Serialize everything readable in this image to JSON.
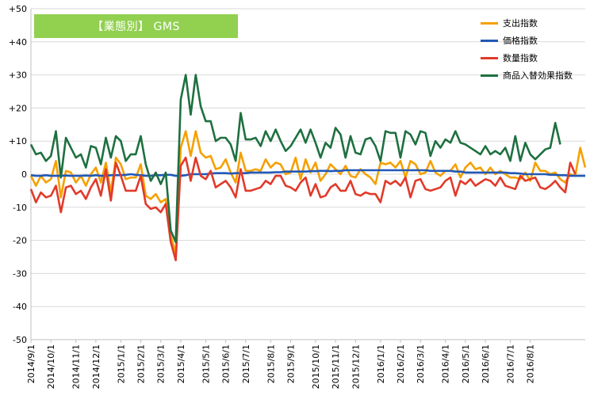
{
  "chart_data": {
    "type": "line",
    "title": "【業態別】 GMS",
    "ylim": [
      -50,
      50
    ],
    "y_ticks": [
      "+50",
      "+40",
      "+30",
      "+20",
      "+10",
      "0",
      "-10",
      "-20",
      "-30",
      "-40",
      "-50"
    ],
    "x_tick_labels": [
      "2014/9/1",
      "2014/10/1",
      "2014/11/1",
      "2014/12/1",
      "2015/1/1",
      "2015/2/1",
      "2015/3/1",
      "2015/4/1",
      "2015/5/1",
      "2015/6/1",
      "2015/7/1",
      "2015/8/1",
      "2015/9/1",
      "2015/10/1",
      "2015/11/1",
      "2015/12/1",
      "2016/1/1",
      "2016/2/1",
      "2016/3/1",
      "2016/4/1",
      "2016/5/1",
      "2016/6/1",
      "2016/7/1",
      "2016/8/1"
    ],
    "x_tick_week_index": [
      0,
      4,
      9,
      13,
      18,
      22,
      26,
      30,
      35,
      39,
      43,
      48,
      52,
      57,
      61,
      65,
      70,
      74,
      78,
      83,
      87,
      91,
      96,
      100
    ],
    "grid": true,
    "legend_position": "top-right",
    "series": [
      {
        "name": "支出指数",
        "color": "#f5a000",
        "values": [
          -0.5,
          -3.5,
          -0.5,
          -2.5,
          -1.5,
          4,
          -7,
          1,
          0.5,
          -2.5,
          -0.5,
          -3.5,
          0,
          2,
          -2.5,
          3.5,
          -5.5,
          5,
          3,
          -1.5,
          -1,
          -1,
          3,
          -6.5,
          -7.5,
          -6,
          -8.5,
          -7.5,
          -18.5,
          -24,
          8,
          13,
          5.5,
          13,
          6.5,
          5,
          5.5,
          1.5,
          2,
          4.5,
          0.5,
          -2.5,
          6.5,
          1,
          1,
          1.5,
          1,
          4.5,
          2,
          3.5,
          3,
          0,
          0.5,
          5,
          -1.5,
          4.5,
          0.5,
          3.5,
          -2,
          0,
          3,
          1.5,
          0,
          2.5,
          -0.5,
          -1,
          1.5,
          0,
          -1,
          -3,
          3.5,
          3,
          3.5,
          2,
          4,
          -1,
          4,
          3,
          0,
          0.5,
          4,
          0.5,
          -0.5,
          1,
          1,
          3,
          -1,
          2,
          3.5,
          1.5,
          2,
          0,
          2,
          0,
          1,
          0,
          -1,
          -1,
          -1.5,
          0.5,
          -2,
          3.5,
          1,
          1,
          0,
          0.5,
          -1.5,
          -2.5,
          0,
          -0.5,
          8,
          2
        ]
      },
      {
        "name": "価格指数",
        "color": "#2158b7",
        "values": [
          -0.3,
          -0.5,
          -0.5,
          -0.3,
          -0.5,
          -0.5,
          -0.5,
          -0.4,
          -0.5,
          -0.5,
          -0.5,
          -0.4,
          -0.5,
          -0.3,
          -0.5,
          -0.5,
          -0.3,
          -0.3,
          -0.3,
          -0.2,
          0,
          -0.2,
          -0.3,
          -0.5,
          -0.5,
          -0.3,
          -0.3,
          -0.2,
          -0.2,
          -0.5,
          -0.5,
          -0.3,
          0,
          0,
          0,
          0,
          0.2,
          0.3,
          0.3,
          0.3,
          0.2,
          0.3,
          0.3,
          0.3,
          0.5,
          0.5,
          0.5,
          0.5,
          0.5,
          0.6,
          0.6,
          0.8,
          0.8,
          0.8,
          0.8,
          0.8,
          0.9,
          0.9,
          1,
          1,
          0.9,
          1,
          1,
          1.2,
          1.2,
          1.2,
          1.2,
          1.2,
          1.2,
          1.2,
          1.2,
          1.2,
          1.2,
          1.2,
          1.2,
          1.2,
          1.2,
          1.2,
          1.2,
          1.2,
          1,
          1,
          1,
          1,
          1,
          0.8,
          0.8,
          0.5,
          0.5,
          0.5,
          0.5,
          0.5,
          0.5,
          0.5,
          0.5,
          0.5,
          0.3,
          0.3,
          0.2,
          0,
          0,
          0,
          0,
          0,
          -0.2,
          -0.2,
          -0.3,
          -0.3,
          -0.5,
          -0.5,
          -0.5,
          -0.5
        ]
      },
      {
        "name": "数量指数",
        "color": "#e13a2a",
        "values": [
          -4.5,
          -8.5,
          -5.5,
          -7,
          -6.5,
          -3.5,
          -11.5,
          -4,
          -3.5,
          -6,
          -5,
          -7.5,
          -4,
          -1.5,
          -6.5,
          1.5,
          -8,
          3.5,
          -0.5,
          -5,
          -5,
          -5,
          -0.5,
          -9,
          -10.5,
          -10,
          -11.5,
          -9,
          -20.5,
          -26,
          2.5,
          5,
          -2,
          5,
          -0.5,
          -1.5,
          1,
          -4,
          -3,
          -2,
          -4,
          -7,
          1.5,
          -5,
          -5,
          -4.5,
          -4,
          -2,
          -3,
          -0.5,
          -0.5,
          -3.5,
          -4,
          -5,
          -2.5,
          -1,
          -6.5,
          -3,
          -7,
          -6.5,
          -4,
          -3,
          -5,
          -5,
          -2,
          -6,
          -6.5,
          -5.5,
          -6,
          -6,
          -8.5,
          -2,
          -3,
          -2,
          -3.5,
          -1,
          -7,
          -2,
          -1.5,
          -4.5,
          -5,
          -4.5,
          -4,
          -2,
          -1,
          -6.5,
          -2,
          -3,
          -1.5,
          -3.5,
          -2.5,
          -1.5,
          -2,
          -3.5,
          -1,
          -3.5,
          -4,
          -4.5,
          -0.5,
          -2,
          -1.5,
          -1,
          -4,
          -4.5,
          -3.5,
          -2,
          -4,
          -5.5,
          3.5,
          0
        ]
      },
      {
        "name": "商品入替効果指数",
        "color": "#1e7040",
        "values": [
          9,
          6,
          6.5,
          4,
          5.5,
          13,
          -1,
          11,
          8,
          5,
          6,
          2,
          8.5,
          8,
          3,
          11,
          5,
          11.5,
          10,
          4,
          6,
          6,
          11.5,
          3,
          -2,
          0.5,
          -3,
          0.5,
          -17,
          -20.5,
          22.5,
          30,
          18,
          30,
          20.5,
          16,
          16,
          10,
          11,
          11,
          9,
          4,
          18.5,
          10.5,
          10.5,
          11,
          8.5,
          13,
          10,
          13.5,
          10,
          7,
          8.5,
          11,
          13.5,
          9.5,
          13.5,
          9.5,
          5,
          9.5,
          8,
          14,
          12,
          5,
          11.5,
          6.5,
          6,
          10.5,
          11,
          8.5,
          4,
          13,
          12.5,
          12.5,
          5,
          13,
          12,
          9,
          13,
          12.5,
          5.5,
          10,
          8,
          10.5,
          9.5,
          13,
          9.5,
          9,
          8,
          7,
          6,
          8.5,
          6,
          7,
          6,
          8,
          4,
          11.5,
          4,
          9.5,
          6,
          4.5,
          6,
          7.5,
          8,
          15.5,
          9
        ]
      }
    ]
  }
}
